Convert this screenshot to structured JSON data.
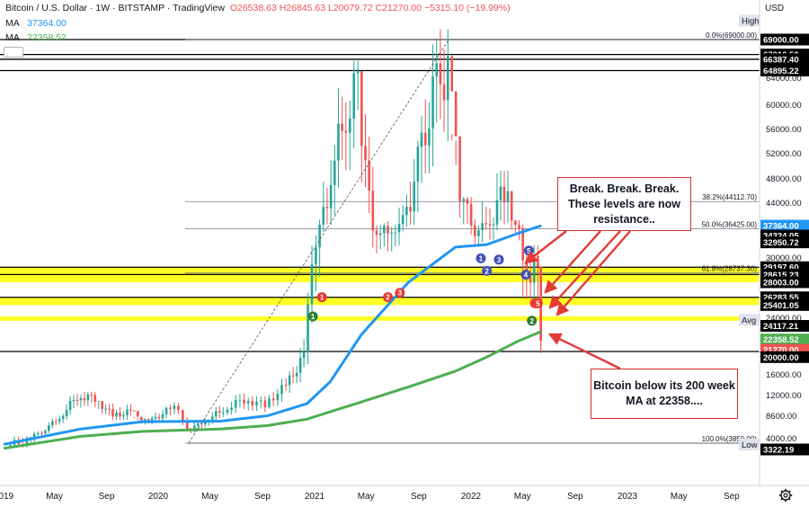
{
  "header": {
    "symbol": "Bitcoin / U.S. Dollar · 1W · BITSTAMP · TradingView",
    "ohlc": "O26538.63 H26845.63 L20079.72 C21270.00 −5315.10 (−19.99%)",
    "ma1_label": "MA",
    "ma1_value": "37364.00",
    "ma2_label": "MA",
    "ma2_value": "22358.52"
  },
  "colors": {
    "candle_up": "#26a69a",
    "candle_down": "#ef5350",
    "ma1": "#2196f3",
    "ma2": "#4caf50",
    "zone": "#ffff00",
    "callout_border": "#d32f2f",
    "arrow": "#e53935"
  },
  "chart_data": {
    "type": "candlestick",
    "currency": "USD",
    "price_axis": {
      "ticks": [
        64000,
        60000,
        56000,
        52000,
        48000,
        44000,
        40000,
        30000,
        28000,
        24000,
        16000,
        12000,
        8600,
        4000
      ],
      "tick_labels": [
        "64000.00",
        "60000.00",
        "56000.00",
        "52000.00",
        "48000.00",
        "44000.00",
        "40000.00",
        "30000.00",
        "28000.00",
        "24000.00",
        "16000.00",
        "12000.00",
        "8600.00",
        "4000.00"
      ]
    },
    "price_labels": [
      {
        "text": "High",
        "price": 71500,
        "style": "tag"
      },
      {
        "text": "69000.00",
        "price": 69000,
        "style": "black"
      },
      {
        "text": "67016.50",
        "price": 67016.5,
        "style": "black"
      },
      {
        "text": "66387.40",
        "price": 66387.4,
        "style": "black"
      },
      {
        "text": "64895.22",
        "price": 64895.22,
        "style": "black"
      },
      {
        "text": "37364.00",
        "price": 37364,
        "style": "blue"
      },
      {
        "text": "34324.05",
        "price": 34324.05,
        "style": "black"
      },
      {
        "text": "32950.72",
        "price": 32950.72,
        "style": "black"
      },
      {
        "text": "29197.60",
        "price": 29197.6,
        "style": "black"
      },
      {
        "text": "28615.23",
        "price": 28615.23,
        "style": "black"
      },
      {
        "text": "28003.00",
        "price": 28003,
        "style": "black"
      },
      {
        "text": "26283.55",
        "price": 26283.55,
        "style": "black"
      },
      {
        "text": "25401.05",
        "price": 25401.05,
        "style": "black"
      },
      {
        "text": "Avg",
        "price": 23700,
        "style": "tag"
      },
      {
        "text": "24117.21",
        "price": 23000,
        "style": "black"
      },
      {
        "text": "22358.52",
        "price": 21400,
        "style": "green"
      },
      {
        "text": "21270.00",
        "price": 20200,
        "style": "red"
      },
      {
        "text": "20000.00",
        "price": 19000,
        "style": "black"
      },
      {
        "text": "Low",
        "price": 3700,
        "style": "tag"
      },
      {
        "text": "3322.19",
        "price": 3000,
        "style": "black"
      }
    ],
    "time_axis": {
      "labels": [
        "2019",
        "May",
        "Sep",
        "2020",
        "May",
        "Sep",
        "2021",
        "May",
        "Sep",
        "2022",
        "May",
        "Sep",
        "2023",
        "May",
        "Sep"
      ],
      "dates": [
        "2019-01-01",
        "2019-05-01",
        "2019-09-01",
        "2020-01-01",
        "2020-05-01",
        "2020-09-01",
        "2021-01-01",
        "2021-05-01",
        "2021-09-01",
        "2022-01-01",
        "2022-05-01",
        "2022-09-01",
        "2023-01-01",
        "2023-05-01",
        "2023-09-01"
      ]
    },
    "horizontal_lines": [
      69000,
      67016.5,
      66387.4,
      64895.22,
      29197.6,
      28615.23,
      26283.55,
      20000
    ],
    "zones": [
      [
        29197.6,
        28003
      ],
      [
        26283.55,
        25401.05
      ],
      [
        24117.21,
        23600
      ]
    ],
    "fib_levels": [
      {
        "label": "0.0%(69000.00)",
        "price": 69000
      },
      {
        "label": "38.2%(44112.70)",
        "price": 44112.7
      },
      {
        "label": "50.0%(36425.00)",
        "price": 36425
      },
      {
        "label": "61.8%(28737.30)",
        "price": 28737.3
      },
      {
        "label": "100.0%(3850.00)",
        "price": 3850
      }
    ],
    "trendline": {
      "from": {
        "date": "2020-03-12",
        "price": 3850
      },
      "to": {
        "date": "2021-11-10",
        "price": 69000
      }
    },
    "markers": [
      {
        "label": "1",
        "color": "green",
        "date": "2020-12-28",
        "price": 24100
      },
      {
        "label": "1",
        "color": "red",
        "date": "2021-01-18",
        "price": 26300
      },
      {
        "label": "2",
        "color": "red",
        "date": "2021-06-21",
        "price": 26300
      },
      {
        "label": "3",
        "color": "red",
        "date": "2021-07-19",
        "price": 26800
      },
      {
        "label": "1",
        "color": "blue",
        "date": "2022-01-24",
        "price": 29900
      },
      {
        "label": "2",
        "color": "blue",
        "date": "2022-02-07",
        "price": 28900
      },
      {
        "label": "3",
        "color": "blue",
        "date": "2022-03-07",
        "price": 29800
      },
      {
        "label": "4",
        "color": "blue",
        "date": "2022-05-09",
        "price": 28600
      },
      {
        "label": "5",
        "color": "blue",
        "date": "2022-05-16",
        "price": 31300
      },
      {
        "label": "4",
        "color": "red",
        "date": "2022-05-30",
        "price": 25600
      },
      {
        "label": "5",
        "color": "red",
        "date": "2022-06-06",
        "price": 25600
      },
      {
        "label": "2",
        "color": "green",
        "date": "2022-05-23",
        "price": 23600
      }
    ],
    "series": [
      {
        "name": "MA",
        "value": 37364,
        "points": [
          [
            2019.0,
            3700
          ],
          [
            2019.5,
            5800
          ],
          [
            2019.9,
            7300
          ],
          [
            2020.4,
            7400
          ],
          [
            2020.7,
            8500
          ],
          [
            2020.95,
            10500
          ],
          [
            2021.1,
            14500
          ],
          [
            2021.3,
            22000
          ],
          [
            2021.6,
            28000
          ],
          [
            2021.9,
            32000
          ],
          [
            2022.1,
            32500
          ],
          [
            2022.3,
            35000
          ],
          [
            2022.45,
            37364
          ]
        ]
      },
      {
        "name": "MA",
        "value": 22358.52,
        "points": [
          [
            2019.0,
            3200
          ],
          [
            2019.5,
            4300
          ],
          [
            2019.9,
            5300
          ],
          [
            2020.4,
            5800
          ],
          [
            2020.7,
            6500
          ],
          [
            2020.95,
            7800
          ],
          [
            2021.3,
            10800
          ],
          [
            2021.6,
            13500
          ],
          [
            2021.9,
            16500
          ],
          [
            2022.1,
            19000
          ],
          [
            2022.3,
            21200
          ],
          [
            2022.45,
            22358.52
          ]
        ]
      }
    ],
    "candles": [
      {
        "date": "2019-01-07",
        "close": 3600,
        "low": 3400,
        "high": 4100
      },
      {
        "date": "2019-02-25",
        "close": 3900,
        "low": 3500,
        "high": 4200
      },
      {
        "date": "2019-04-01",
        "close": 5200,
        "low": 4100,
        "high": 5500
      },
      {
        "date": "2019-05-13",
        "close": 8200,
        "low": 6000,
        "high": 8900
      },
      {
        "date": "2019-06-24",
        "close": 11800,
        "low": 9500,
        "high": 13800
      },
      {
        "date": "2019-08-05",
        "close": 11400,
        "low": 9500,
        "high": 12300
      },
      {
        "date": "2019-09-16",
        "close": 8500,
        "low": 7800,
        "high": 10500
      },
      {
        "date": "2019-10-28",
        "close": 9200,
        "low": 8000,
        "high": 10500
      },
      {
        "date": "2019-12-09",
        "close": 7200,
        "low": 6500,
        "high": 7900
      },
      {
        "date": "2020-01-20",
        "close": 9300,
        "low": 8000,
        "high": 9800
      },
      {
        "date": "2020-02-17",
        "close": 9800,
        "low": 9200,
        "high": 10500
      },
      {
        "date": "2020-03-09",
        "close": 5400,
        "low": 3850,
        "high": 8000
      },
      {
        "date": "2020-04-20",
        "close": 7500,
        "low": 6500,
        "high": 8000
      },
      {
        "date": "2020-06-01",
        "close": 9600,
        "low": 8800,
        "high": 10300
      },
      {
        "date": "2020-07-20",
        "close": 11200,
        "low": 9000,
        "high": 12000
      },
      {
        "date": "2020-09-07",
        "close": 10300,
        "low": 9900,
        "high": 11500
      },
      {
        "date": "2020-10-26",
        "close": 13800,
        "low": 12000,
        "high": 15000
      },
      {
        "date": "2020-12-07",
        "close": 19200,
        "low": 17500,
        "high": 21000
      },
      {
        "date": "2021-01-04",
        "close": 34000,
        "low": 28000,
        "high": 41900
      },
      {
        "date": "2021-02-08",
        "close": 48500,
        "low": 38000,
        "high": 52000
      },
      {
        "date": "2021-03-15",
        "close": 58700,
        "low": 50000,
        "high": 61800
      },
      {
        "date": "2021-04-12",
        "close": 63000,
        "low": 54000,
        "high": 64895.22
      },
      {
        "date": "2021-05-17",
        "close": 37000,
        "low": 30000,
        "high": 58000
      },
      {
        "date": "2021-06-21",
        "close": 34700,
        "low": 28800,
        "high": 40000
      },
      {
        "date": "2021-07-26",
        "close": 39900,
        "low": 29300,
        "high": 42600
      },
      {
        "date": "2021-08-30",
        "close": 50000,
        "low": 44000,
        "high": 52900
      },
      {
        "date": "2021-10-04",
        "close": 61000,
        "low": 47000,
        "high": 67016.5
      },
      {
        "date": "2021-11-08",
        "close": 65500,
        "low": 58000,
        "high": 69000
      },
      {
        "date": "2021-12-06",
        "close": 46700,
        "low": 42000,
        "high": 53000
      },
      {
        "date": "2022-01-10",
        "close": 36000,
        "low": 33000,
        "high": 44000
      },
      {
        "date": "2022-02-14",
        "close": 40000,
        "low": 34000,
        "high": 45800
      },
      {
        "date": "2022-03-28",
        "close": 47500,
        "low": 37000,
        "high": 48200
      },
      {
        "date": "2022-05-02",
        "close": 30000,
        "low": 26700,
        "high": 39900
      },
      {
        "date": "2022-06-06",
        "close": 28400,
        "low": 26600,
        "high": 31700
      },
      {
        "date": "2022-06-13",
        "close": 21270,
        "low": 20079.72,
        "high": 26845.63
      }
    ],
    "annotations": [
      {
        "text": "Break. Break. Break. These levels are now resistance.."
      },
      {
        "text": "Bitcoin below its 200 week MA at 22358...."
      }
    ]
  }
}
